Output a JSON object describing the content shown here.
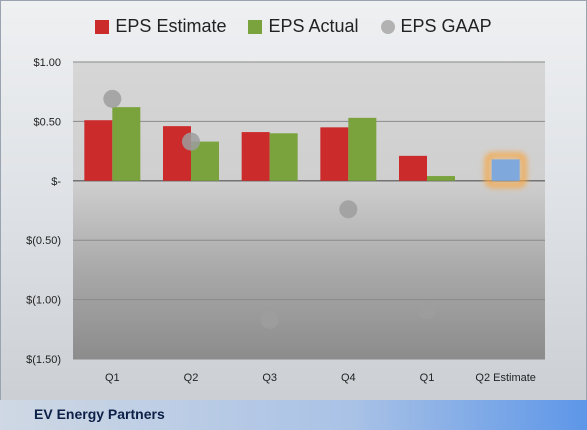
{
  "chart_data": {
    "type": "bar",
    "categories": [
      "Q1",
      "Q2",
      "Q3",
      "Q4",
      "Q1",
      "Q2 Estimate"
    ],
    "series": [
      {
        "name": "EPS Estimate",
        "values": [
          0.51,
          0.46,
          0.41,
          0.45,
          0.21,
          null
        ]
      },
      {
        "name": "EPS Actual",
        "values": [
          0.62,
          0.33,
          0.4,
          0.53,
          0.04,
          null
        ]
      },
      {
        "name": "EPS GAAP",
        "type": "scatter",
        "values": [
          0.69,
          0.33,
          -1.17,
          -0.24,
          -1.09,
          null
        ]
      },
      {
        "name": "",
        "values": [
          null,
          null,
          null,
          null,
          null,
          0.18
        ]
      }
    ],
    "ylim": [
      -1.5,
      1.0
    ],
    "yticks": [
      1.0,
      0.5,
      0.0,
      -0.5,
      -1.0,
      -1.5
    ],
    "ytick_labels": [
      "$1.00",
      "$0.50",
      "$-",
      "$(0.50)",
      "$(1.00)",
      "$(1.50)"
    ],
    "legend_position": "top",
    "grid": true
  },
  "colors": {
    "estimate": "#cc2b2b",
    "actual": "#7aa33d",
    "gaap": "#b2b2b2",
    "q2_estimate": "#7fa8dc",
    "q2_glow": "#f5a84a"
  },
  "footer": {
    "title": "EV Energy Partners"
  }
}
